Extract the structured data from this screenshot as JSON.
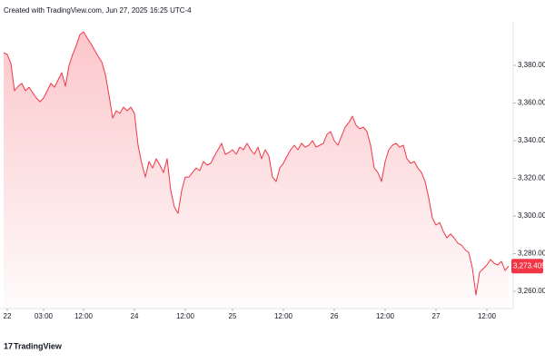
{
  "chart_data": {
    "type": "area",
    "title": "Created with TradingView.com, Jun 27, 2025 16:25 UTC-4",
    "brand": "TradingView",
    "color": "#f23645",
    "grid": false,
    "values": [
      3386.7,
      3385.8,
      3381.0,
      3366.5,
      3368.9,
      3370.4,
      3366.5,
      3368.4,
      3365.5,
      3362.7,
      3360.7,
      3362.7,
      3366.5,
      3370.4,
      3368.4,
      3372.3,
      3376.1,
      3368.9,
      3380.0,
      3385.8,
      3390.6,
      3396.4,
      3397.8,
      3394.5,
      3391.6,
      3388.2,
      3384.8,
      3381.9,
      3375.2,
      3364.1,
      3352.0,
      3355.9,
      3354.5,
      3357.8,
      3355.9,
      3357.8,
      3354.5,
      3337.6,
      3328.0,
      3320.7,
      3328.9,
      3325.5,
      3330.4,
      3327.0,
      3323.1,
      3330.4,
      3313.5,
      3304.8,
      3301.4,
      3313.5,
      3320.7,
      3320.7,
      3323.1,
      3325.5,
      3324.1,
      3328.9,
      3327.0,
      3328.0,
      3331.8,
      3335.2,
      3338.6,
      3332.8,
      3333.7,
      3335.2,
      3332.8,
      3336.6,
      3335.2,
      3338.6,
      3335.2,
      3332.8,
      3336.6,
      3330.4,
      3335.2,
      3331.8,
      3320.7,
      3318.3,
      3325.5,
      3328.0,
      3331.8,
      3335.2,
      3337.6,
      3335.2,
      3338.6,
      3336.6,
      3337.6,
      3340.0,
      3336.6,
      3337.6,
      3338.6,
      3343.4,
      3344.8,
      3340.0,
      3337.6,
      3342.4,
      3347.2,
      3349.6,
      3353.0,
      3348.2,
      3346.3,
      3347.2,
      3344.8,
      3337.6,
      3325.5,
      3323.1,
      3318.3,
      3328.9,
      3335.2,
      3337.6,
      3338.6,
      3336.6,
      3337.6,
      3330.4,
      3328.0,
      3328.9,
      3325.5,
      3323.1,
      3318.3,
      3309.6,
      3299.0,
      3295.2,
      3296.6,
      3291.8,
      3288.4,
      3290.4,
      3288.4,
      3285.5,
      3284.6,
      3282.2,
      3280.7,
      3272.5,
      3258.1,
      3270.1,
      3272.0,
      3274.0,
      3276.9,
      3274.9,
      3274.0,
      3275.9,
      3271.1,
      3273.405
    ],
    "last_price": {
      "value": 3273.405,
      "label": "3,273.405"
    },
    "ylim": [
      3251,
      3400
    ],
    "yticks": [
      {
        "value": 3260,
        "label": "3,260.000"
      },
      {
        "value": 3280,
        "label": "3,280.000"
      },
      {
        "value": 3300,
        "label": "3,300.000"
      },
      {
        "value": 3320,
        "label": "3,320.000"
      },
      {
        "value": 3340,
        "label": "3,340.000"
      },
      {
        "value": 3360,
        "label": "3,360.000"
      },
      {
        "value": 3380,
        "label": "3,380.000"
      }
    ],
    "xticks": [
      {
        "value": 1,
        "label": "22"
      },
      {
        "value": 11,
        "label": "03:00"
      },
      {
        "value": 22,
        "label": "12:00"
      },
      {
        "value": 36,
        "label": "24"
      },
      {
        "value": 50,
        "label": "12:00"
      },
      {
        "value": 63,
        "label": "25"
      },
      {
        "value": 77,
        "label": "12:00"
      },
      {
        "value": 91,
        "label": "26"
      },
      {
        "value": 105,
        "label": "12:00"
      },
      {
        "value": 119,
        "label": "27"
      },
      {
        "value": 133,
        "label": "12:00"
      }
    ]
  }
}
